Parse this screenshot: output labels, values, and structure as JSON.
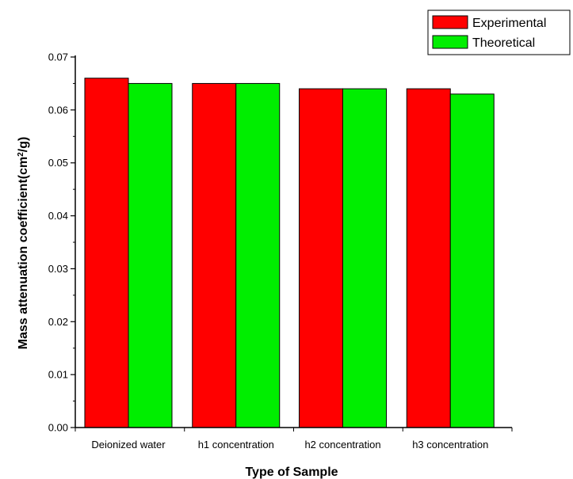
{
  "chart_data": {
    "type": "bar",
    "title": "",
    "xlabel": "Type of Sample",
    "ylabel_main": "Mass attenuation coefficient(cm",
    "ylabel_sup": "2",
    "ylabel_end": "/g)",
    "categories": [
      "Deionized water",
      "h1 concentration",
      "h2 concentration",
      "h3 concentration"
    ],
    "series": [
      {
        "name": "Experimental",
        "color": "#ff0000",
        "values": [
          0.066,
          0.065,
          0.064,
          0.064
        ]
      },
      {
        "name": "Theoretical",
        "color": "#00ee00",
        "values": [
          0.065,
          0.065,
          0.064,
          0.063
        ]
      }
    ],
    "ylim": [
      0,
      0.07
    ],
    "yticks": [
      "0.00",
      "0.01",
      "0.02",
      "0.03",
      "0.04",
      "0.05",
      "0.06",
      "0.07"
    ],
    "grid": false,
    "legend_position": "top-right"
  }
}
